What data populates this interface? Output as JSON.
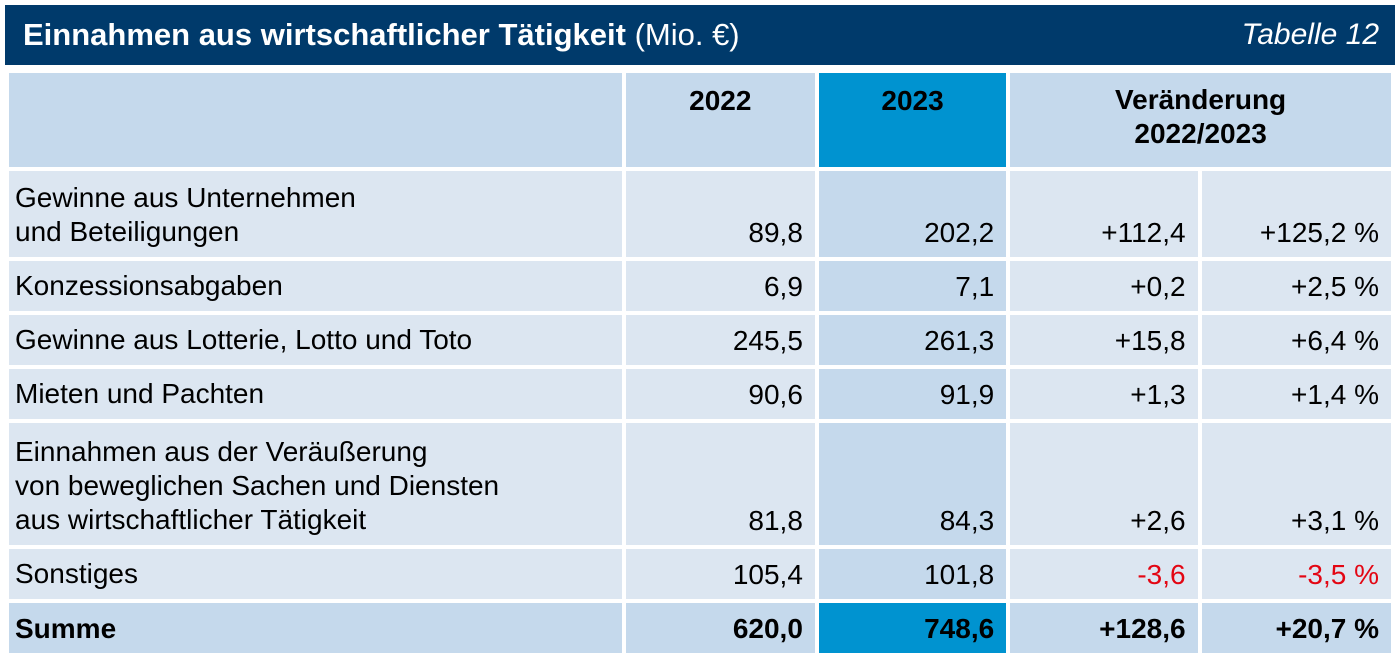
{
  "title": {
    "main": "Einnahmen aus wirtschaftlicher Tätigkeit",
    "unit": "(Mio. €)",
    "table_number": "Tabelle 12"
  },
  "header": {
    "col_2022": "2022",
    "col_2023": "2023",
    "col_change_line1": "Veränderung",
    "col_change_line2": "2022/2023"
  },
  "rows": [
    {
      "label_lines": [
        "Gewinne aus Unternehmen",
        "und Beteiligungen"
      ],
      "v2022": "89,8",
      "v2023": "202,2",
      "abs": "+112,4",
      "pct": "+125,2 %",
      "negative": false
    },
    {
      "label_lines": [
        "Konzessionsabgaben"
      ],
      "v2022": "6,9",
      "v2023": "7,1",
      "abs": "+0,2",
      "pct": "+2,5 %",
      "negative": false
    },
    {
      "label_lines": [
        "Gewinne aus Lotterie, Lotto und Toto"
      ],
      "v2022": "245,5",
      "v2023": "261,3",
      "abs": "+15,8",
      "pct": "+6,4 %",
      "negative": false
    },
    {
      "label_lines": [
        "Mieten und Pachten"
      ],
      "v2022": "90,6",
      "v2023": "91,9",
      "abs": "+1,3",
      "pct": "+1,4 %",
      "negative": false
    },
    {
      "label_lines": [
        "Einnahmen aus der Veräußerung",
        "von beweglichen Sachen und Diensten",
        "aus wirtschaftlicher Tätigkeit"
      ],
      "v2022": "81,8",
      "v2023": "84,3",
      "abs": "+2,6",
      "pct": "+3,1 %",
      "negative": false
    },
    {
      "label_lines": [
        "Sonstiges"
      ],
      "v2022": "105,4",
      "v2023": "101,8",
      "abs": "-3,6",
      "pct": "-3,5 %",
      "negative": true
    }
  ],
  "total": {
    "label": "Summe",
    "v2022": "620,0",
    "v2023": "748,6",
    "abs": "+128,6",
    "pct": "+20,7 %"
  },
  "colors": {
    "title_bg": "#003a6b",
    "cell_light": "#dce6f1",
    "cell_mid": "#c5d9ec",
    "accent_2023": "#0093d0",
    "negative": "#e30613"
  }
}
